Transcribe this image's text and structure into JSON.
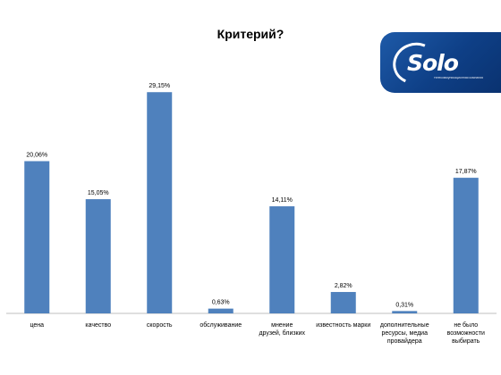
{
  "chart_data": {
    "type": "bar",
    "title": "Критерий?",
    "xlabel": "",
    "ylabel": "",
    "ylim": [
      0,
      32
    ],
    "grid": false,
    "color": "#4f81bd",
    "categories": [
      [
        "цена"
      ],
      [
        "качество"
      ],
      [
        "скорость"
      ],
      [
        "обслуживание"
      ],
      [
        "мнение",
        "друзей, близких"
      ],
      [
        "известность марки"
      ],
      [
        "дополнительные",
        "ресурсы, медиа",
        "провайдера"
      ],
      [
        "не было",
        "возможности",
        "выбирать"
      ]
    ],
    "values": [
      20.06,
      15.05,
      29.15,
      0.63,
      14.11,
      2.82,
      0.31,
      17.87
    ],
    "data_labels": [
      "20,06%",
      "15,05%",
      "29,15%",
      "0,63%",
      "14,11%",
      "2,82%",
      "0,31%",
      "17,87%"
    ]
  },
  "logo": {
    "word": "Solo",
    "subtitle": "телекоммуникационная компания",
    "icon": "solo-swoosh-icon",
    "background": "#0e3f86"
  }
}
